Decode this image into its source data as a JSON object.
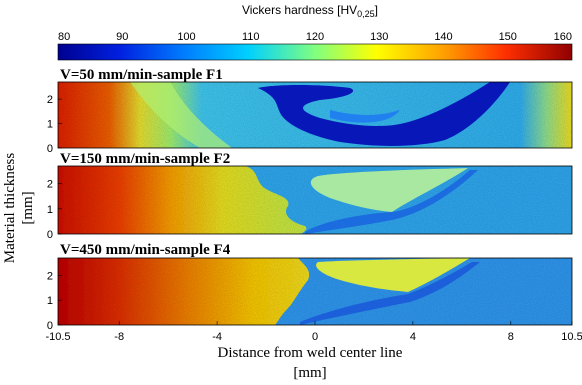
{
  "chart_data": {
    "type": "heatmap",
    "colorbar": {
      "title_main": "Vickers hardness [HV",
      "title_sub": "0,25",
      "title_end": "]",
      "min": 80,
      "max": 160,
      "ticks": [
        "80",
        "90",
        "100",
        "110",
        "120",
        "130",
        "140",
        "150",
        "160"
      ],
      "colors": [
        "#00008f",
        "#0040ff",
        "#00c0ff",
        "#80ff80",
        "#ffff00",
        "#ffc000",
        "#ff4000",
        "#c00000",
        "#800000"
      ]
    },
    "panels": [
      {
        "title": "V=50 mm/min-sample F1",
        "regions": [
          {
            "x_range": [
              -10.5,
              -8.5
            ],
            "hardness": 148,
            "description_ref": "left edge"
          },
          {
            "x_range": [
              -8.5,
              -5
            ],
            "hardness": 135
          },
          {
            "x_range": [
              -5,
              10.5
            ],
            "hardness": 112
          }
        ],
        "feature": "dark blue soft zone, curved, centered near x=2",
        "feature_hardness": 88
      },
      {
        "title": "V=150 mm/min-sample F2",
        "regions": [
          {
            "x_range": [
              -10.5,
              -7
            ],
            "hardness": 150
          },
          {
            "x_range": [
              -7,
              -2
            ],
            "hardness": 135
          },
          {
            "x_range": [
              -2,
              10.5
            ],
            "hardness": 108
          }
        ],
        "feature": "light green wedge from x=0 to x=7 in upper half",
        "feature_hardness": 120
      },
      {
        "title": "V=450 mm/min-sample F4",
        "regions": [
          {
            "x_range": [
              -10.5,
              -6
            ],
            "hardness": 152
          },
          {
            "x_range": [
              -6,
              0
            ],
            "hardness": 138
          },
          {
            "x_range": [
              0,
              10.5
            ],
            "hardness": 110
          }
        ],
        "feature": "yellow-green wedge from x=0 to x=6 in upper half",
        "feature_hardness": 123
      }
    ],
    "y_ticks": [
      "0",
      "1",
      "2"
    ],
    "y_range": [
      0,
      2.7
    ],
    "x_ticks": [
      "-10.5",
      "-8",
      "-4",
      "0",
      "4",
      "8",
      "10.5"
    ],
    "x_tick_values": [
      -10.5,
      -8,
      -4,
      0,
      4,
      8,
      10.5
    ],
    "x_range": [
      -10.5,
      10.5
    ],
    "xlabel_line1": "Distance from weld center line",
    "xlabel_line2": "[mm]",
    "ylabel_line1": "Material thickness",
    "ylabel_line2": "[mm]"
  }
}
